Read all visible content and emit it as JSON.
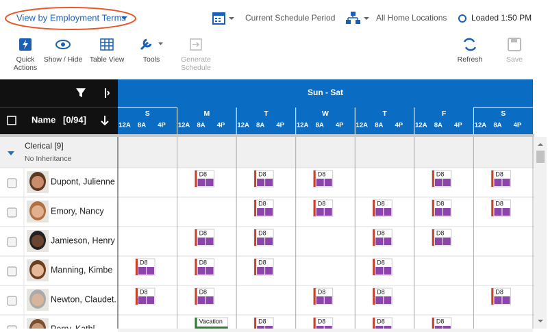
{
  "header": {
    "view_selector": "View by Employment Terms",
    "schedule_period": "Current Schedule Period",
    "locations": "All Home Locations",
    "status": "Loaded 1:50 PM"
  },
  "toolbar": [
    {
      "lines": [
        "Quick",
        "Actions"
      ]
    },
    {
      "lines": [
        "Show / Hide"
      ]
    },
    {
      "lines": [
        "Table View"
      ]
    },
    {
      "lines": [
        "Tools"
      ]
    },
    {
      "lines": [
        "Generate",
        "Schedule"
      ]
    },
    {
      "lines": [
        "Refresh"
      ]
    },
    {
      "lines": [
        "Save"
      ]
    }
  ],
  "grid": {
    "range": "Sun - Sat",
    "name_header": "Name",
    "count": "[0/94]",
    "days": [
      "S",
      "M",
      "T",
      "W",
      "T",
      "F",
      "S"
    ],
    "time_labels": [
      "12A",
      "8A",
      "4P"
    ],
    "group": {
      "name": "Clerical [9]",
      "note": "No Inheritance"
    },
    "rows": [
      {
        "name": "Dupont, Julienne",
        "shifts": [
          null,
          "D8",
          "D8",
          "D8",
          null,
          "D8",
          "D8"
        ]
      },
      {
        "name": "Emory, Nancy",
        "shifts": [
          null,
          null,
          "D8",
          "D8",
          "D8",
          "D8",
          "D8"
        ]
      },
      {
        "name": "Jamieson, Henry",
        "shifts": [
          null,
          "D8",
          "D8",
          null,
          "D8",
          "D8",
          null
        ]
      },
      {
        "name": "Manning, Kimbe",
        "shifts": [
          "D8",
          "D8",
          "D8",
          null,
          "D8",
          null,
          null
        ]
      },
      {
        "name": "Newton, Claudet...",
        "shifts": [
          "D8",
          "D8",
          null,
          "D8",
          "D8",
          null,
          "D8"
        ]
      },
      {
        "name": "Perry, Kathl",
        "shifts": [
          null,
          "Vacation",
          "D8",
          "D8",
          "D8",
          "D8",
          null
        ]
      }
    ]
  }
}
